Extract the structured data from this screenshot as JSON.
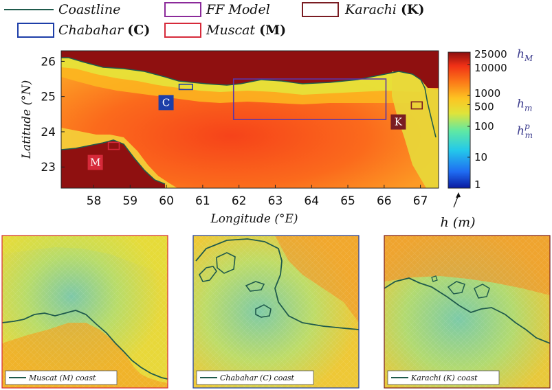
{
  "chart_data": [
    {
      "type": "heatmap",
      "title": "",
      "xlabel": "Longitude (°E)",
      "ylabel": "Latitude (°N)",
      "xlim": [
        57.1,
        67.5
      ],
      "ylim": [
        22.4,
        26.3
      ],
      "x_ticks": [
        "58",
        "59",
        "60",
        "61",
        "62",
        "63",
        "64",
        "65",
        "66",
        "67"
      ],
      "y_ticks": [
        "26",
        "25",
        "24",
        "23"
      ],
      "legend": {
        "placement": "top",
        "entries": [
          {
            "label": "Coastline",
            "color": "#1f5a4c",
            "kind": "line"
          },
          {
            "label": "FF Model",
            "color": "#8b2a9a",
            "kind": "box"
          },
          {
            "label": "Karachi",
            "bold_suffix": "(K)",
            "color": "#7a1c22",
            "kind": "box"
          },
          {
            "label": "Chabahar",
            "bold_suffix": "(C)",
            "color": "#1d3ea8",
            "kind": "box"
          },
          {
            "label": "Muscat",
            "bold_suffix": "(M)",
            "color": "#d62a3a",
            "kind": "box"
          }
        ]
      },
      "regions": [
        {
          "name": "FF Model",
          "lon": [
            61.85,
            66.05
          ],
          "lat": [
            24.35,
            25.5
          ],
          "color": "#5a36a8"
        },
        {
          "name": "Chabahar",
          "marker": "C",
          "lon": [
            60.35,
            60.72
          ],
          "lat": [
            25.2,
            25.35
          ],
          "color": "#1d3ea8"
        },
        {
          "name": "Karachi",
          "marker": "K",
          "lon": [
            66.75,
            67.05
          ],
          "lat": [
            24.65,
            24.85
          ],
          "color": "#7a1c22"
        },
        {
          "name": "Muscat",
          "marker": "M",
          "lon": [
            58.4,
            58.7
          ],
          "lat": [
            23.5,
            23.7
          ],
          "color": "#d62a3a"
        }
      ],
      "colorbar": {
        "label": "h (m)",
        "scale": "log",
        "range": [
          1,
          25000
        ],
        "ticks": [
          "25000",
          "10000",
          "1000",
          "500",
          "100",
          "10",
          "1"
        ],
        "annotations": [
          {
            "text": "h",
            "sub": "M",
            "at": 25000
          },
          {
            "text": "h",
            "sub": "m",
            "at": 500
          },
          {
            "text": "h",
            "sub": "m",
            "sup": "p",
            "at": 100
          }
        ],
        "colors": [
          "#0a1aa0",
          "#1f6cf2",
          "#24c9ea",
          "#5fe8a4",
          "#dfe43a",
          "#fdc422",
          "#fc7a18",
          "#f03116",
          "#8c0e0e"
        ]
      }
    }
  ],
  "panels": [
    {
      "name": "muscat",
      "legend_label": "Muscat (M) coast",
      "border_color": "#d62a3a"
    },
    {
      "name": "chabahar",
      "legend_label": "Chabahar (C) coast",
      "border_color": "#1d3ea8"
    },
    {
      "name": "karachi",
      "legend_label": "Karachi (K) coast",
      "border_color": "#7a1c22"
    }
  ]
}
